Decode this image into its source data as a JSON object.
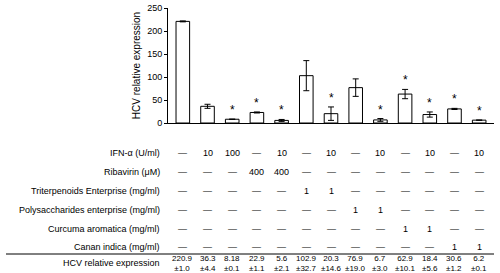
{
  "chart_data": {
    "type": "bar",
    "y_label": "HCV relative expression",
    "values": [
      220.9,
      36.3,
      8.18,
      22.9,
      5.6,
      102.9,
      20.3,
      76.9,
      6.7,
      62.9,
      18.4,
      30.6,
      6.2
    ],
    "errors": [
      1.0,
      4.4,
      0.1,
      1.1,
      2.1,
      32.7,
      14.6,
      19.0,
      3.0,
      10.1,
      5.6,
      1.2,
      0.1
    ],
    "error_labels": [
      "±1.0",
      "±4.4",
      "±0.1",
      "±1.1",
      "±2.1",
      "±32.7",
      "±14.6",
      "±19.0",
      "±3.0",
      "±10.1",
      "±5.6",
      "±1.2",
      "±0.1"
    ],
    "significance": [
      null,
      null,
      "*",
      "*",
      "*",
      null,
      "*",
      null,
      "*",
      "*",
      "*",
      "*",
      "*"
    ],
    "color": "#ffffff",
    "ylim": [
      0,
      250
    ],
    "yticks": [
      0,
      50,
      100,
      150,
      200,
      250
    ],
    "grid": false,
    "tick_labels": "y",
    "treatments": [
      {
        "label": "IFN-α (U/ml)",
        "cells": [
          "—",
          10,
          100,
          "—",
          10,
          "—",
          10,
          "—",
          10,
          "—",
          10,
          "—",
          10
        ]
      },
      {
        "label": "Ribavirin (μM)",
        "cells": [
          "—",
          "—",
          "—",
          400,
          400,
          "—",
          "—",
          "—",
          "—",
          "—",
          "—",
          "—",
          "—"
        ]
      },
      {
        "label": "Triterpenoids Enterprise (mg/ml)",
        "cells": [
          "—",
          "—",
          "—",
          "—",
          "—",
          1,
          1,
          "—",
          "—",
          "—",
          "—",
          "—",
          "—"
        ]
      },
      {
        "label": "Polysaccharides enterprise (mg/ml)",
        "cells": [
          "—",
          "—",
          "—",
          "—",
          "—",
          "—",
          "—",
          1,
          1,
          "—",
          "—",
          "—",
          "—"
        ]
      },
      {
        "label": "Curcuma aromatica (mg/ml)",
        "cells": [
          "—",
          "—",
          "—",
          "—",
          "—",
          "—",
          "—",
          "—",
          "—",
          1,
          1,
          "—",
          "—"
        ]
      },
      {
        "label": "Canan indica (mg/ml)",
        "cells": [
          "—",
          "—",
          "—",
          "—",
          "—",
          "—",
          "—",
          "—",
          "—",
          "—",
          "—",
          1,
          1
        ]
      }
    ],
    "summary_label": "HCV relative expression"
  }
}
